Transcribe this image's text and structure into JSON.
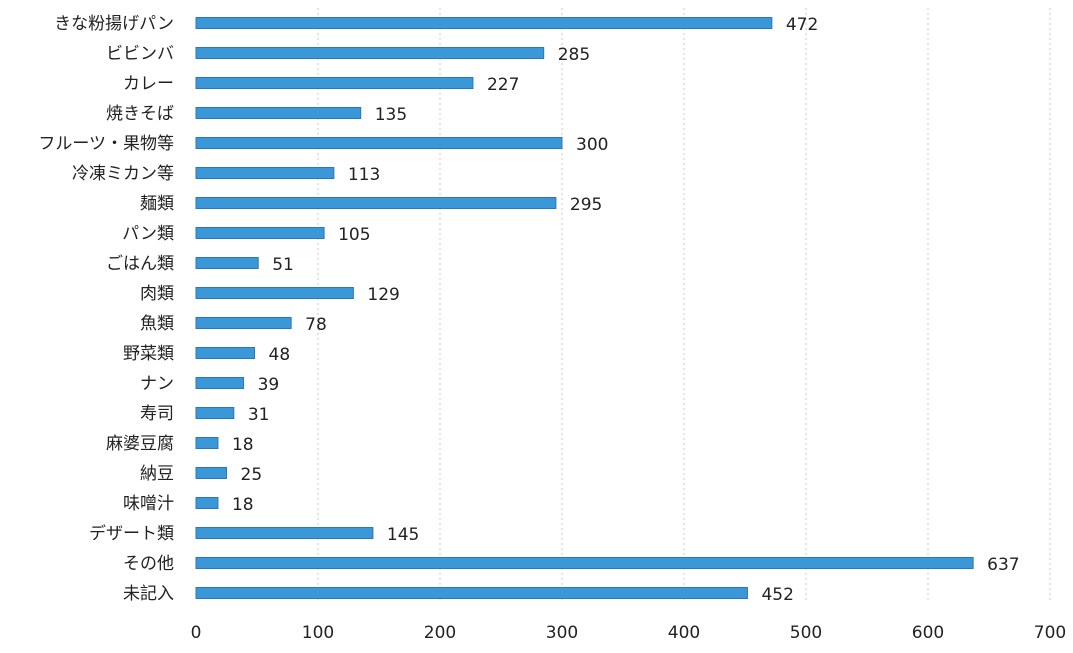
{
  "chart_data": {
    "type": "bar",
    "orientation": "horizontal",
    "categories": [
      "きな粉揚げパン",
      "ビビンバ",
      "カレー",
      "焼きそば",
      "フルーツ・果物等",
      "冷凍ミカン等",
      "麺類",
      "パン類",
      "ごはん類",
      "肉類",
      "魚類",
      "野菜類",
      "ナン",
      "寿司",
      "麻婆豆腐",
      "納豆",
      "味噌汁",
      "デザート類",
      "その他",
      "未記入"
    ],
    "values": [
      472,
      285,
      227,
      135,
      300,
      113,
      295,
      105,
      51,
      129,
      78,
      48,
      39,
      31,
      18,
      25,
      18,
      145,
      637,
      452
    ],
    "xlim": [
      0,
      700
    ],
    "xticks": [
      0,
      100,
      200,
      300,
      400,
      500,
      600,
      700
    ],
    "grid": true,
    "bar_color": "#3a98d8",
    "legend": "none"
  }
}
